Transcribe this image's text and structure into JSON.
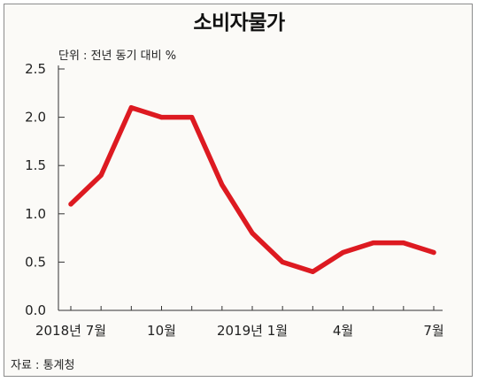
{
  "title": "소비자물가",
  "unit_note": "단위 : 전년 동기 대비 %",
  "source": "자료 : 통계청",
  "chart_data": {
    "type": "line",
    "title": "소비자물가",
    "x": [
      "2018-07",
      "2018-08",
      "2018-09",
      "2018-10",
      "2018-11",
      "2018-12",
      "2019-01",
      "2019-02",
      "2019-03",
      "2019-04",
      "2019-05",
      "2019-06",
      "2019-07"
    ],
    "x_tick_labels": [
      {
        "index": 0,
        "label": "2018년 7월"
      },
      {
        "index": 3,
        "label": "10월"
      },
      {
        "index": 6,
        "label": "2019년 1월"
      },
      {
        "index": 9,
        "label": "4월"
      },
      {
        "index": 12,
        "label": "7월"
      }
    ],
    "y_tick_labels": [
      "0.0",
      "0.5",
      "1.0",
      "1.5",
      "2.0",
      "2.5"
    ],
    "ylim": [
      0,
      2.5
    ],
    "series": [
      {
        "values": [
          1.1,
          1.4,
          2.1,
          2.0,
          2.0,
          1.3,
          0.8,
          0.5,
          0.4,
          0.6,
          0.7,
          0.7,
          0.6
        ],
        "color": "#dd1a21"
      }
    ],
    "grid": false,
    "legend": "none"
  }
}
